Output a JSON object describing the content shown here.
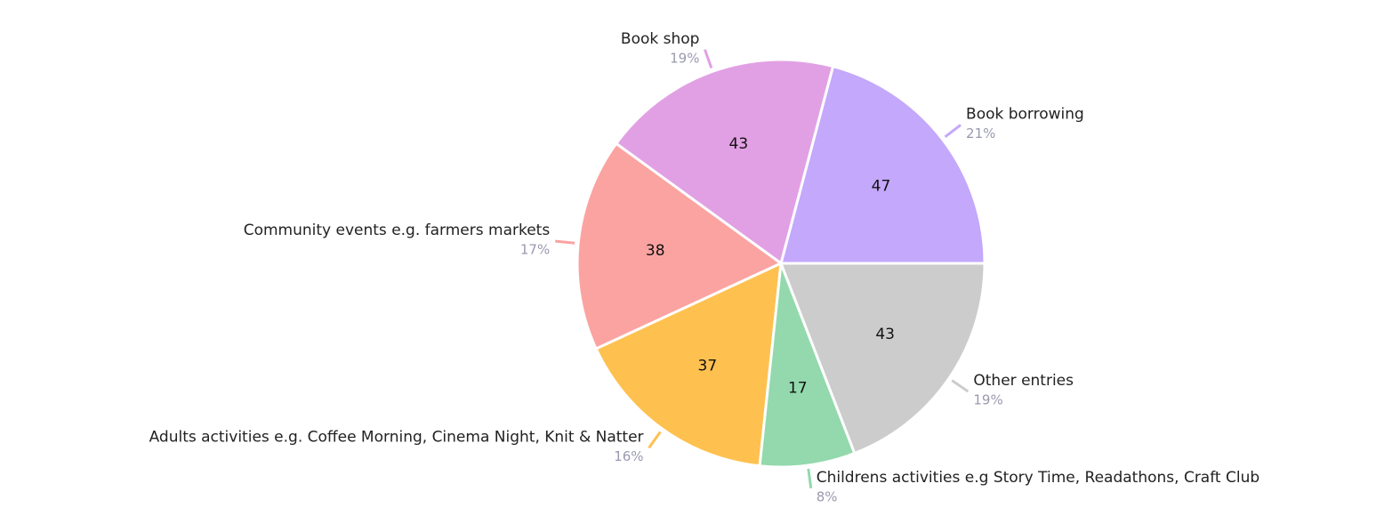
{
  "chart_data": {
    "type": "pie",
    "categories": [
      "Book borrowing",
      "Book shop",
      "Community events e.g. farmers markets",
      "Adults activities e.g. Coffee Morning, Cinema Night, Knit & Natter",
      "Childrens activities e.g Story Time, Readathons, Craft Club",
      "Other entries"
    ],
    "values": [
      47,
      43,
      38,
      37,
      17,
      43
    ],
    "percent_labels": [
      "21%",
      "19%",
      "17%",
      "16%",
      "8%",
      "19%"
    ],
    "colors": [
      "#c4a8fb",
      "#e2a0e4",
      "#fba3a1",
      "#fec150",
      "#93d9ad",
      "#cccccc"
    ]
  }
}
